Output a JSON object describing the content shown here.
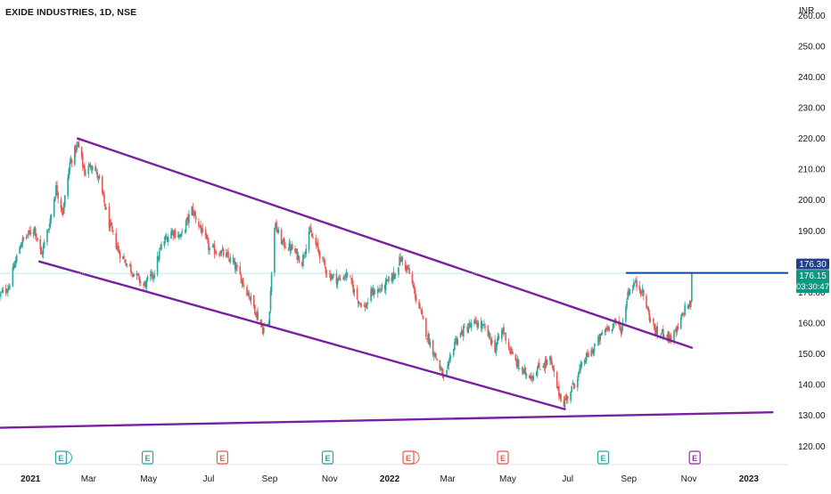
{
  "header": {
    "title": "EXIDE INDUSTRIES, 1D, NSE",
    "currency": "INR"
  },
  "colors": {
    "up": "#26a69a",
    "down": "#ef5350",
    "trendline": "#7b1fa2",
    "resistance": "#0d47a1",
    "last_price_bg": "#089981",
    "resistance_label_bg": "#1e3f8f"
  },
  "chart_data": {
    "type": "candlestick",
    "title": "EXIDE INDUSTRIES, 1D, NSE",
    "ylabel": "INR",
    "ylim": [
      114,
      265
    ],
    "y_ticks": [
      120,
      130,
      140,
      150,
      160,
      170,
      180,
      190,
      200,
      210,
      220,
      230,
      240,
      250,
      260
    ],
    "y_tick_labels": [
      "120.00",
      "130.00",
      "140.00",
      "150.00",
      "160.00",
      "170.00",
      "180.00",
      "190.00",
      "200.00",
      "210.00",
      "220.00",
      "230.00",
      "240.00",
      "250.00",
      "260.00"
    ],
    "x_ticks": [
      "2021",
      "Mar",
      "May",
      "Jul",
      "Sep",
      "Nov",
      "2022",
      "Mar",
      "May",
      "Jul",
      "Sep",
      "Nov",
      "2023"
    ],
    "x_tick_dates": [
      "2021-01-01",
      "2021-03-01",
      "2021-05-01",
      "2021-07-01",
      "2021-09-01",
      "2021-11-01",
      "2022-01-01",
      "2022-03-01",
      "2022-05-01",
      "2022-07-01",
      "2022-09-01",
      "2022-11-01",
      "2023-01-01"
    ],
    "price_path": [
      [
        "2020-12-01",
        169
      ],
      [
        "2020-12-10",
        172
      ],
      [
        "2020-12-22",
        186
      ],
      [
        "2021-01-05",
        191
      ],
      [
        "2021-01-12",
        182
      ],
      [
        "2021-01-20",
        192
      ],
      [
        "2021-01-27",
        204
      ],
      [
        "2021-02-03",
        196
      ],
      [
        "2021-02-10",
        212
      ],
      [
        "2021-02-18",
        218
      ],
      [
        "2021-02-25",
        209
      ],
      [
        "2021-03-05",
        212
      ],
      [
        "2021-03-12",
        206
      ],
      [
        "2021-03-22",
        192
      ],
      [
        "2021-04-01",
        183
      ],
      [
        "2021-04-12",
        178
      ],
      [
        "2021-04-26",
        172
      ],
      [
        "2021-05-06",
        176
      ],
      [
        "2021-05-15",
        186
      ],
      [
        "2021-05-25",
        190
      ],
      [
        "2021-06-03",
        188
      ],
      [
        "2021-06-14",
        197
      ],
      [
        "2021-06-24",
        190
      ],
      [
        "2021-07-02",
        184
      ],
      [
        "2021-07-14",
        183
      ],
      [
        "2021-07-25",
        180
      ],
      [
        "2021-08-04",
        174
      ],
      [
        "2021-08-14",
        167
      ],
      [
        "2021-08-25",
        158
      ],
      [
        "2021-08-31",
        160
      ],
      [
        "2021-09-06",
        192
      ],
      [
        "2021-09-14",
        186
      ],
      [
        "2021-09-24",
        184
      ],
      [
        "2021-10-04",
        180
      ],
      [
        "2021-10-11",
        190
      ],
      [
        "2021-10-20",
        184
      ],
      [
        "2021-10-30",
        176
      ],
      [
        "2021-11-10",
        174
      ],
      [
        "2021-11-19",
        176
      ],
      [
        "2021-11-29",
        168
      ],
      [
        "2021-12-07",
        165
      ],
      [
        "2021-12-14",
        170
      ],
      [
        "2021-12-24",
        171
      ],
      [
        "2022-01-06",
        176
      ],
      [
        "2022-01-12",
        181
      ],
      [
        "2022-01-20",
        177
      ],
      [
        "2022-01-28",
        168
      ],
      [
        "2022-02-08",
        156
      ],
      [
        "2022-02-18",
        148
      ],
      [
        "2022-02-26",
        141
      ],
      [
        "2022-03-08",
        154
      ],
      [
        "2022-03-18",
        158
      ],
      [
        "2022-03-30",
        160
      ],
      [
        "2022-04-08",
        158
      ],
      [
        "2022-04-18",
        152
      ],
      [
        "2022-04-26",
        158
      ],
      [
        "2022-05-06",
        149
      ],
      [
        "2022-05-16",
        144
      ],
      [
        "2022-05-26",
        143
      ],
      [
        "2022-06-03",
        146
      ],
      [
        "2022-06-13",
        148
      ],
      [
        "2022-06-21",
        138
      ],
      [
        "2022-06-27",
        134
      ],
      [
        "2022-07-07",
        140
      ],
      [
        "2022-07-18",
        148
      ],
      [
        "2022-07-28",
        152
      ],
      [
        "2022-08-08",
        158
      ],
      [
        "2022-08-18",
        160
      ],
      [
        "2022-08-25",
        158
      ],
      [
        "2022-08-31",
        170
      ],
      [
        "2022-09-07",
        173
      ],
      [
        "2022-09-14",
        171
      ],
      [
        "2022-09-22",
        162
      ],
      [
        "2022-09-30",
        156
      ],
      [
        "2022-10-07",
        157
      ],
      [
        "2022-10-14",
        155
      ],
      [
        "2022-10-21",
        158
      ],
      [
        "2022-10-28",
        165
      ],
      [
        "2022-11-03",
        166
      ],
      [
        "2022-11-04",
        176
      ]
    ],
    "trendlines": [
      {
        "name": "upper",
        "from": [
          "2021-02-18",
          220
        ],
        "to": [
          "2022-11-04",
          152
        ]
      },
      {
        "name": "lower",
        "from": [
          "2021-01-10",
          180
        ],
        "to": [
          "2022-06-28",
          132
        ]
      },
      {
        "name": "support",
        "from": [
          "2020-12-01",
          126
        ],
        "to": [
          "2023-01-25",
          131
        ]
      }
    ],
    "resistance": {
      "value": 176.3,
      "label": "176.30",
      "from": "2022-08-29"
    },
    "last_price": {
      "value": 176.15,
      "label": "176.15",
      "countdown": "03:30:47"
    },
    "events": [
      {
        "date": "2021-02-01",
        "type": "E",
        "color": "#26a69a",
        "group": true
      },
      {
        "date": "2021-04-30",
        "type": "E",
        "color": "#26a69a"
      },
      {
        "date": "2021-07-15",
        "type": "E",
        "color": "#ef5350"
      },
      {
        "date": "2021-10-30",
        "type": "E",
        "color": "#26a69a"
      },
      {
        "date": "2022-01-20",
        "type": "E",
        "color": "#ef5350",
        "group": true
      },
      {
        "date": "2022-04-26",
        "type": "E",
        "color": "#ef5350"
      },
      {
        "date": "2022-08-06",
        "type": "E",
        "color": "#26a69a"
      },
      {
        "date": "2022-11-07",
        "type": "E",
        "color": "#9c27b0",
        "outline": true
      }
    ]
  }
}
